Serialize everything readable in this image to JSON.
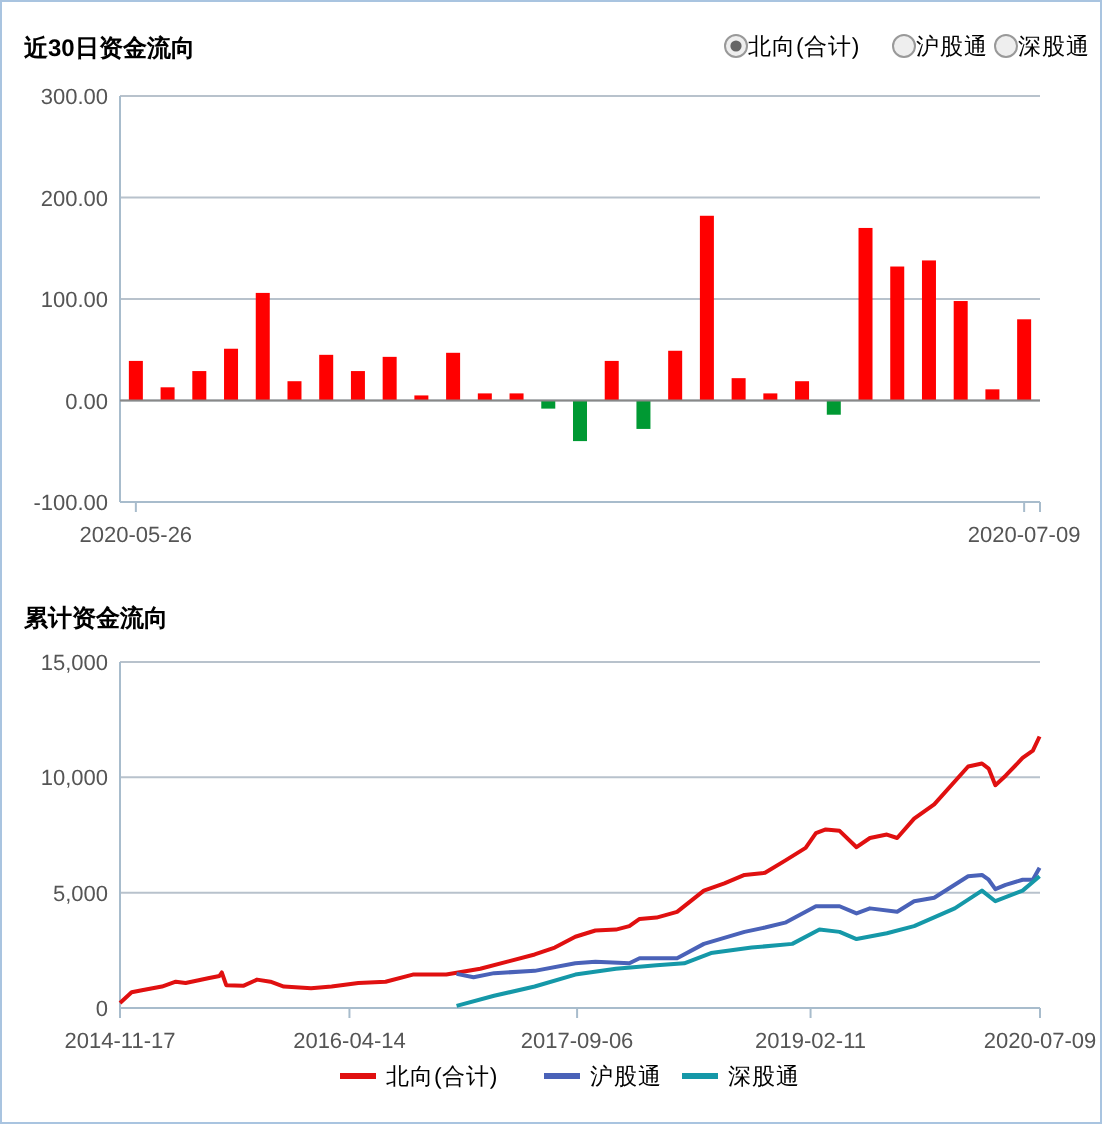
{
  "chart_data": [
    {
      "type": "bar",
      "title": "近30日资金流向",
      "annotations": [
        "北向(合计)",
        "沪股通",
        "深股通"
      ],
      "categories": [
        "2020-05-26",
        null,
        null,
        null,
        null,
        null,
        null,
        null,
        null,
        null,
        null,
        null,
        null,
        null,
        null,
        null,
        null,
        null,
        null,
        null,
        null,
        null,
        null,
        null,
        null,
        null,
        null,
        null,
        "2020-07-09"
      ],
      "values": [
        39,
        13,
        29,
        51,
        106,
        19,
        45,
        29,
        43,
        5,
        47,
        7,
        7,
        -8,
        -40,
        39,
        -28,
        49,
        182,
        22,
        7,
        19,
        -14,
        170,
        132,
        138,
        98,
        11,
        80
      ],
      "colors": [
        "#ff0000",
        "#ff0000",
        "#ff0000",
        "#ff0000",
        "#ff0000",
        "#ff0000",
        "#ff0000",
        "#ff0000",
        "#ff0000",
        "#ff0000",
        "#ff0000",
        "#ff0000",
        "#ff0000",
        "#009933",
        "#009933",
        "#ff0000",
        "#009933",
        "#ff0000",
        "#ff0000",
        "#ff0000",
        "#ff0000",
        "#ff0000",
        "#009933",
        "#ff0000",
        "#ff0000",
        "#ff0000",
        "#ff0000",
        "#ff0000",
        "#ff0000"
      ],
      "ylim": [
        -100,
        300
      ],
      "yticks": [
        {
          "value": -100,
          "label": "-100.00"
        },
        {
          "value": 0,
          "label": "0.00"
        },
        {
          "value": 100,
          "label": "100.00"
        },
        {
          "value": 200,
          "label": "200.00"
        },
        {
          "value": 300,
          "label": "300.00"
        }
      ],
      "grid": "y"
    },
    {
      "type": "line",
      "title": "累计资金流向",
      "legend": "bottom",
      "grid": "y",
      "xlim": [
        "2014-11-17",
        "2020-07-09"
      ],
      "xticks": [
        {
          "value": "2014-11-17",
          "label": "2014-11-17"
        },
        {
          "value": "2016-04-14",
          "label": "2016-04-14"
        },
        {
          "value": "2017-09-06",
          "label": "2017-09-06"
        },
        {
          "value": "2019-02-11",
          "label": "2019-02-11"
        },
        {
          "value": "2020-07-09",
          "label": "2020-07-09"
        }
      ],
      "ylim": [
        0,
        15000
      ],
      "yticks": [
        0,
        {
          "value": 5000,
          "label": "5,000"
        },
        {
          "value": 10000,
          "label": "10,000"
        },
        {
          "value": 15000,
          "label": "15,000"
        }
      ],
      "series": [
        {
          "name": "北向(合计)",
          "color": "#e01010",
          "x": [
            "2014-11-17",
            "2014-12-13",
            "2015-01-05",
            "2015-02-19",
            "2015-03-22",
            "2015-04-13",
            "2015-06-05",
            "2015-06-28",
            "2015-07-03",
            "2015-07-13",
            "2015-08-20",
            "2015-09-20",
            "2015-10-20",
            "2015-11-19",
            "2016-01-19",
            "2016-03-05",
            "2016-05-04",
            "2016-07-04",
            "2016-09-03",
            "2016-11-17",
            "2017-02-01",
            "2017-04-03",
            "2017-06-03",
            "2017-07-18",
            "2017-09-02",
            "2017-10-17",
            "2017-12-02",
            "2018-01-01",
            "2018-01-24",
            "2018-03-03",
            "2018-04-18",
            "2018-06-17",
            "2018-08-02",
            "2018-09-16",
            "2018-11-01",
            "2018-12-16",
            "2019-01-31",
            "2019-02-23",
            "2019-03-17",
            "2019-04-17",
            "2019-05-25",
            "2019-06-24",
            "2019-08-01",
            "2019-08-24",
            "2019-10-01",
            "2019-11-15",
            "2020-01-30",
            "2020-03-01",
            "2020-03-16",
            "2020-03-31",
            "2020-04-23",
            "2020-05-31",
            "2020-06-23",
            "2020-07-08"
          ],
          "values": [
            220,
            680,
            770,
            930,
            1140,
            1080,
            1300,
            1390,
            1540,
            990,
            960,
            1230,
            1140,
            930,
            860,
            930,
            1080,
            1140,
            1450,
            1450,
            1700,
            2010,
            2320,
            2620,
            3090,
            3360,
            3400,
            3550,
            3860,
            3920,
            4170,
            5090,
            5400,
            5770,
            5860,
            6390,
            6940,
            7580,
            7740,
            7680,
            6970,
            7370,
            7520,
            7370,
            8210,
            8830,
            10470,
            10600,
            10380,
            9660,
            10070,
            10840,
            11160,
            11770
          ]
        },
        {
          "name": "沪股通",
          "color": "#4a62b8",
          "x": [
            "2016-12-10",
            "2017-01-17",
            "2017-03-04",
            "2017-06-03",
            "2017-09-02",
            "2017-10-17",
            "2018-01-01",
            "2018-01-24",
            "2018-04-18",
            "2018-06-17",
            "2018-09-16",
            "2018-11-01",
            "2018-12-16",
            "2019-02-23",
            "2019-04-17",
            "2019-05-25",
            "2019-06-24",
            "2019-08-24",
            "2019-10-01",
            "2019-11-15",
            "2020-01-30",
            "2020-03-01",
            "2020-03-16",
            "2020-03-31",
            "2020-04-23",
            "2020-05-31",
            "2020-06-23",
            "2020-07-08"
          ],
          "values": [
            1480,
            1330,
            1510,
            1610,
            1940,
            2010,
            1940,
            2160,
            2160,
            2780,
            3300,
            3490,
            3700,
            4410,
            4410,
            4100,
            4320,
            4170,
            4630,
            4780,
            5710,
            5770,
            5560,
            5150,
            5340,
            5560,
            5560,
            6080
          ]
        },
        {
          "name": "深股通",
          "color": "#1598a8",
          "x": [
            "2016-12-10",
            "2017-03-04",
            "2017-06-03",
            "2017-09-02",
            "2017-12-02",
            "2018-03-03",
            "2018-05-04",
            "2018-07-03",
            "2018-10-02",
            "2019-01-01",
            "2019-03-03",
            "2019-04-17",
            "2019-05-25",
            "2019-08-01",
            "2019-10-01",
            "2019-12-31",
            "2020-03-01",
            "2020-03-31",
            "2020-05-31",
            "2020-07-08"
          ],
          "values": [
            90,
            530,
            930,
            1450,
            1700,
            1850,
            1940,
            2380,
            2620,
            2780,
            3400,
            3300,
            2990,
            3240,
            3550,
            4320,
            5090,
            4630,
            5090,
            5710
          ]
        }
      ]
    }
  ]
}
